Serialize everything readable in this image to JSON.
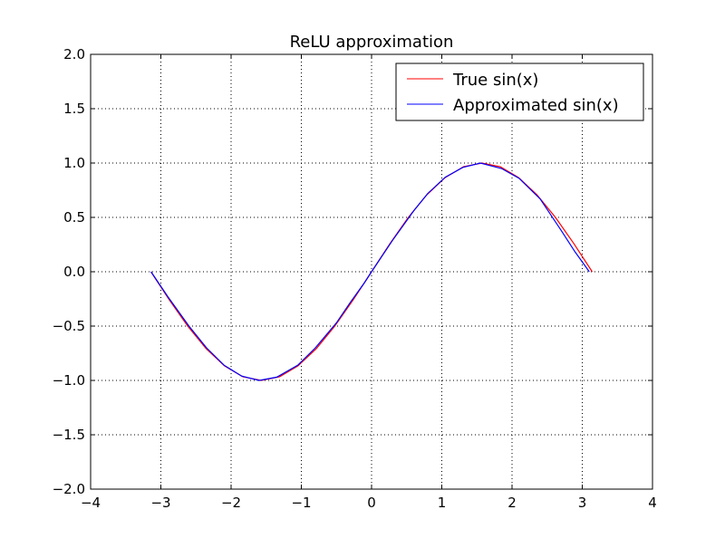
{
  "chart_data": {
    "type": "line",
    "title": "ReLU approximation",
    "xlabel": "",
    "ylabel": "",
    "xlim": [
      -4,
      4
    ],
    "ylim": [
      -2,
      2
    ],
    "grid": true,
    "legend_position": "top-right",
    "x_ticks": [
      -4,
      -3,
      -2,
      -1,
      0,
      1,
      2,
      3,
      4
    ],
    "x_tick_labels": [
      "−4",
      "−3",
      "−2",
      "−1",
      "0",
      "1",
      "2",
      "3",
      "4"
    ],
    "y_ticks": [
      -2.0,
      -1.5,
      -1.0,
      -0.5,
      0.0,
      0.5,
      1.0,
      1.5,
      2.0
    ],
    "y_tick_labels": [
      "−2.0",
      "−1.5",
      "−1.0",
      "−0.5",
      "0.0",
      "0.5",
      "1.0",
      "1.5",
      "2.0"
    ],
    "series": [
      {
        "name": "True sin(x)",
        "color": "#ff0000",
        "x": [
          -3.1416,
          -2.88,
          -2.618,
          -2.3562,
          -2.0944,
          -1.8326,
          -1.5708,
          -1.309,
          -1.0472,
          -0.7854,
          -0.5236,
          -0.2618,
          0.0,
          0.2618,
          0.5236,
          0.7854,
          1.0472,
          1.309,
          1.5708,
          1.8326,
          2.0944,
          2.3562,
          2.618,
          2.88,
          3.1416
        ],
        "y": [
          0.0,
          -0.259,
          -0.5,
          -0.707,
          -0.866,
          -0.966,
          -1.0,
          -0.966,
          -0.866,
          -0.707,
          -0.5,
          -0.259,
          0.0,
          0.259,
          0.5,
          0.707,
          0.866,
          0.966,
          1.0,
          0.966,
          0.866,
          0.707,
          0.5,
          0.259,
          0.0
        ]
      },
      {
        "name": "Approximated sin(x)",
        "color": "#0000ff",
        "x": [
          -3.14,
          -2.9,
          -2.6,
          -2.35,
          -2.1,
          -1.85,
          -1.6,
          -1.35,
          -1.05,
          -0.8,
          -0.5,
          -0.3,
          -0.1,
          0.0,
          0.3,
          0.6,
          0.8,
          1.05,
          1.3,
          1.55,
          1.85,
          2.1,
          2.4,
          2.7,
          2.9,
          3.1
        ],
        "y": [
          0.0,
          -0.23,
          -0.5,
          -0.7,
          -0.86,
          -0.96,
          -1.0,
          -0.97,
          -0.86,
          -0.7,
          -0.47,
          -0.28,
          -0.1,
          0.0,
          0.29,
          0.56,
          0.72,
          0.87,
          0.96,
          1.0,
          0.95,
          0.86,
          0.67,
          0.38,
          0.18,
          0.0
        ]
      }
    ]
  }
}
